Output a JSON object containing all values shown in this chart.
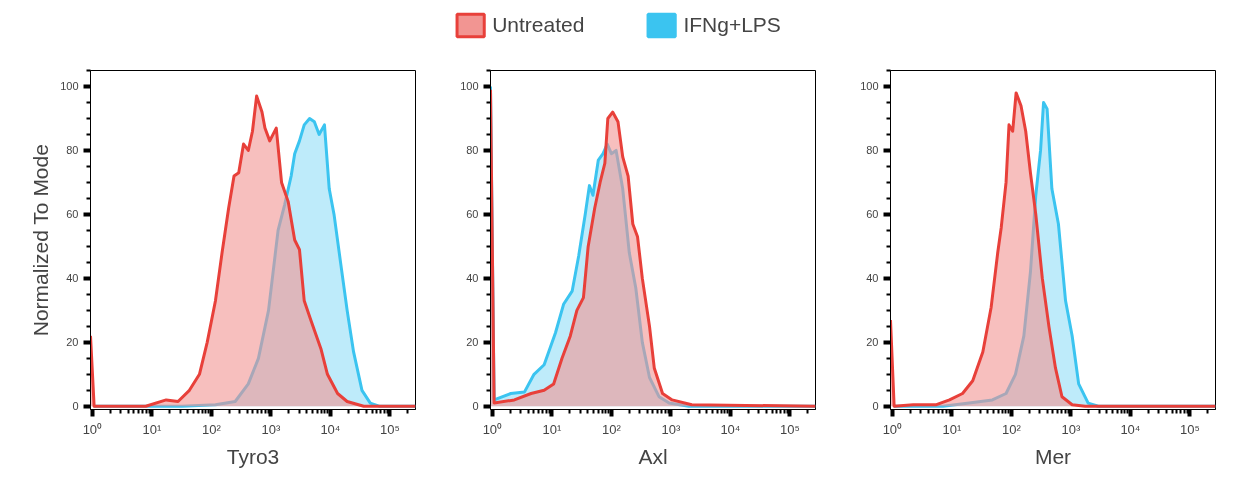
{
  "chart_data": [
    {
      "type": "area",
      "xlabel": "Tyro3",
      "ylabel": "Normalized To Mode",
      "legend": "top",
      "grid": false,
      "log": "x",
      "xlim": [
        0.93,
        269000
      ],
      "ylim": [
        -1,
        105
      ],
      "xticks": [
        {
          "value": 1,
          "label": "10⁰"
        },
        {
          "value": 10,
          "label": "10¹"
        },
        {
          "value": 100,
          "label": "10²"
        },
        {
          "value": 1000,
          "label": "10³"
        },
        {
          "value": 10000,
          "label": "10⁴"
        },
        {
          "value": 100000,
          "label": "10⁵"
        }
      ],
      "yticks": [
        0,
        20,
        40,
        60,
        80,
        100
      ],
      "series": [
        {
          "name": "IFNg+LPS",
          "color": "#3bc4f0",
          "x": [
            1.07,
            32,
            117,
            251,
            417,
            617,
            912,
            1320,
            1700,
            2190,
            2510,
            3020,
            3630,
            4470,
            5370,
            6460,
            7940,
            9550,
            11500,
            14800,
            19100,
            24500,
            33900,
            46800,
            67600,
            269000
          ],
          "values": [
            0,
            0,
            0.5,
            1.5,
            7,
            15,
            30,
            55,
            63,
            72,
            79,
            83,
            88,
            90,
            89,
            85,
            88,
            68,
            60,
            45,
            30,
            17,
            5,
            1,
            0,
            0
          ]
        },
        {
          "name": "Untreated",
          "color": "#e8403a",
          "x": [
            0.93,
            1.07,
            7.9,
            17.4,
            27.5,
            42.7,
            63,
            85,
            117,
            151,
            195,
            240,
            288,
            347,
            417,
            490,
            575,
            708,
            794,
            955,
            1230,
            1510,
            1950,
            2510,
            3020,
            3630,
            4680,
            6920,
            8910,
            13200,
            19100,
            36300,
            269000
          ],
          "values": [
            22,
            0,
            0,
            2,
            1.5,
            5,
            10,
            20,
            33,
            48,
            62,
            72,
            73,
            82,
            80,
            86,
            97,
            92,
            87,
            83,
            87,
            70,
            64,
            52,
            49,
            33,
            27,
            18,
            10,
            4,
            1.5,
            0,
            0
          ]
        }
      ]
    },
    {
      "type": "area",
      "xlabel": "Axl",
      "grid": false,
      "log": "x",
      "xlim": [
        0.93,
        269000
      ],
      "ylim": [
        -1,
        105
      ],
      "xticks": [
        {
          "value": 1,
          "label": "10⁰"
        },
        {
          "value": 10,
          "label": "10¹"
        },
        {
          "value": 100,
          "label": "10²"
        },
        {
          "value": 1000,
          "label": "10³"
        },
        {
          "value": 10000,
          "label": "10⁴"
        },
        {
          "value": 100000,
          "label": "10⁵"
        }
      ],
      "yticks": [
        0,
        20,
        40,
        60,
        80,
        100
      ],
      "series": [
        {
          "color": "#3bc4f0",
          "x": [
            0.93,
            1.07,
            2.04,
            3.47,
            5.01,
            7.41,
            11.5,
            15.8,
            21.9,
            28.2,
            36.3,
            42.7,
            49,
            60.3,
            72.4,
            85.1,
            100,
            120,
            155,
            200,
            257,
            331,
            437,
            631,
            933,
            2000,
            269000
          ],
          "values": [
            100,
            2,
            4,
            4.5,
            10,
            13,
            23,
            32,
            36,
            47,
            60,
            69,
            66,
            77,
            79,
            82,
            79,
            80,
            68,
            48,
            37,
            20,
            9,
            3,
            1,
            0,
            0
          ]
        },
        {
          "color": "#e8403a",
          "x": [
            0.93,
            1.07,
            2.34,
            4.47,
            7.41,
            10.7,
            14.8,
            20.4,
            26.3,
            33.9,
            40.7,
            52.5,
            64.6,
            77.6,
            87.1,
            105,
            129,
            155,
            191,
            229,
            275,
            331,
            437,
            525,
            724,
            1050,
            2240,
            269000
          ],
          "values": [
            99,
            1,
            2,
            4,
            5,
            7,
            15,
            22,
            30,
            34,
            50,
            62,
            70,
            76,
            90,
            92,
            89,
            78,
            72,
            57,
            53,
            40,
            25,
            12,
            4,
            2,
            0.5,
            0
          ]
        }
      ]
    },
    {
      "type": "area",
      "xlabel": "Mer",
      "grid": false,
      "log": "x",
      "xlim": [
        0.93,
        269000
      ],
      "ylim": [
        -1,
        105
      ],
      "xticks": [
        {
          "value": 1,
          "label": "10⁰"
        },
        {
          "value": 10,
          "label": "10¹"
        },
        {
          "value": 100,
          "label": "10²"
        },
        {
          "value": 1000,
          "label": "10³"
        },
        {
          "value": 10000,
          "label": "10⁴"
        },
        {
          "value": 100000,
          "label": "10⁵"
        }
      ],
      "yticks": [
        0,
        20,
        40,
        60,
        80,
        100
      ],
      "series": [
        {
          "color": "#3bc4f0",
          "x": [
            1.07,
            7.08,
            19.5,
            47.9,
            81.3,
            117,
            162,
            209,
            257,
            309,
            347,
            398,
            479,
            617,
            813,
            1050,
            1350,
            1950,
            2880,
            269000
          ],
          "values": [
            0,
            0,
            1,
            2,
            4,
            10,
            22,
            42,
            66,
            80,
            95,
            93,
            68,
            57,
            33,
            22,
            7,
            1,
            0,
            0
          ]
        },
        {
          "color": "#e8403a",
          "x": [
            0.93,
            1.07,
            2.24,
            5.5,
            9.12,
            15.1,
            22.4,
            33.1,
            45.7,
            58.9,
            67.6,
            81.3,
            91.2,
            105,
            120,
            145,
            174,
            209,
            257,
            331,
            427,
            550,
            708,
            1050,
            1740,
            269000
          ],
          "values": [
            27,
            0,
            0.5,
            0.5,
            2,
            4,
            8,
            17,
            31,
            48,
            56,
            70,
            88,
            86,
            98,
            94,
            86,
            73,
            60,
            40,
            25,
            12,
            3,
            0.5,
            0,
            0
          ]
        }
      ]
    }
  ]
}
